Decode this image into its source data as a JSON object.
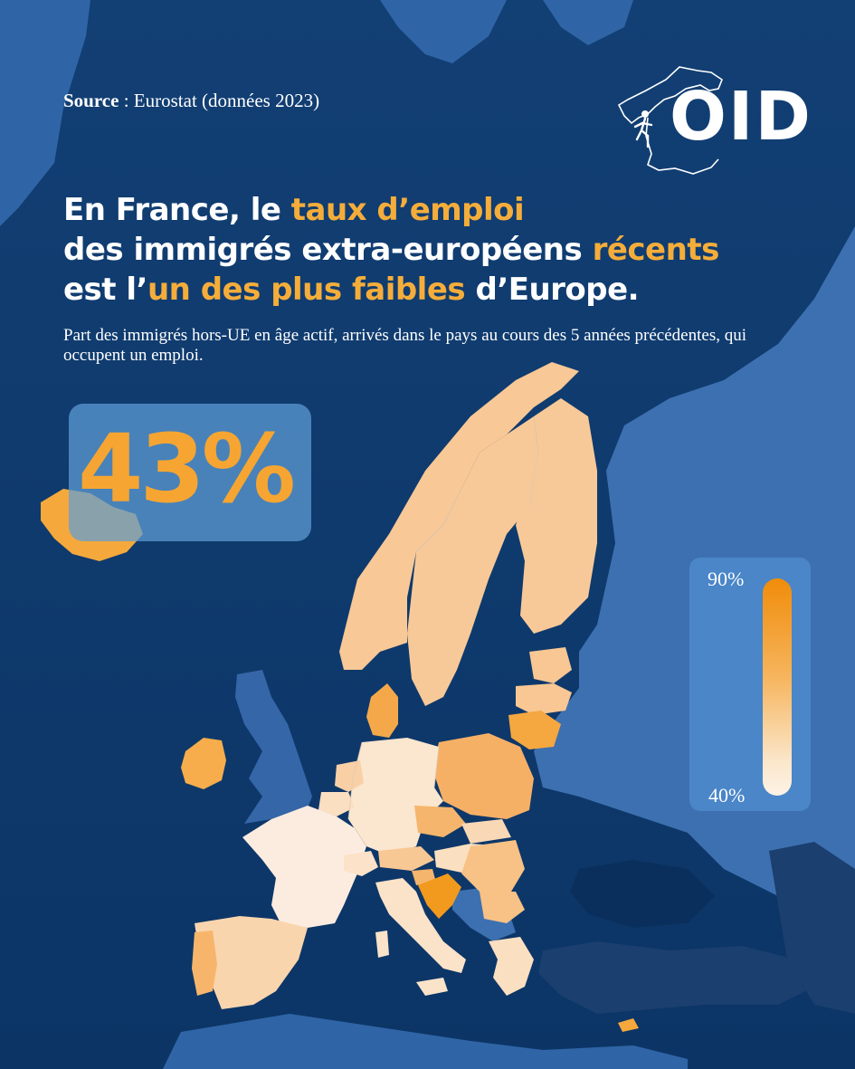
{
  "source": {
    "label": "Source",
    "separator": " : ",
    "text": "Eurostat (données 2023)"
  },
  "logo": {
    "text": "OID"
  },
  "title": {
    "line1_a": "En France, le ",
    "line1_b": "taux d’emploi",
    "line2_a": "des immigrés extra-européens ",
    "line2_b": "récents",
    "line3_a": "est l’",
    "line3_b": "un des plus faibles",
    "line3_c": " d’Europe."
  },
  "subtitle": "Part des immigrés hors-UE en âge actif, arrivés dans le pays au cours des 5 années précédentes, qui occupent un emploi.",
  "highlight": {
    "value": "43%"
  },
  "legend": {
    "max_label": "90%",
    "min_label": "40%",
    "max": 90,
    "min": 40
  },
  "colors": {
    "background": "#0d3a6e",
    "accent": "#f5ad3a",
    "scale_high": "#f08c0a",
    "scale_low": "#fdf3e6",
    "non_eu_land": "#3d70b0",
    "other_land": "#1b3f6e"
  },
  "map_data": {
    "countries": [
      {
        "name": "France",
        "share_pct": 43
      },
      {
        "name": "Croatia",
        "share_pct": 75
      },
      {
        "name": "Iceland",
        "share_pct": 68
      },
      {
        "name": "Ireland",
        "share_pct": 64
      },
      {
        "name": "Lithuania",
        "share_pct": 64
      },
      {
        "name": "Poland",
        "share_pct": 62
      },
      {
        "name": "Cyprus",
        "share_pct": 68
      },
      {
        "name": "Slovenia",
        "share_pct": 64
      },
      {
        "name": "Czechia",
        "share_pct": 58
      },
      {
        "name": "Romania",
        "share_pct": 56
      },
      {
        "name": "Portugal",
        "share_pct": 56
      },
      {
        "name": "Denmark",
        "share_pct": 58
      },
      {
        "name": "Bulgaria",
        "share_pct": 55
      },
      {
        "name": "Netherlands",
        "share_pct": 53
      },
      {
        "name": "Sweden",
        "share_pct": 52
      },
      {
        "name": "Finland",
        "share_pct": 52
      },
      {
        "name": "Norway",
        "share_pct": 53
      },
      {
        "name": "Estonia",
        "share_pct": 53
      },
      {
        "name": "Latvia",
        "share_pct": 53
      },
      {
        "name": "Austria",
        "share_pct": 52
      },
      {
        "name": "Hungary",
        "share_pct": 48
      },
      {
        "name": "Slovakia",
        "share_pct": 49
      },
      {
        "name": "Spain",
        "share_pct": 50
      },
      {
        "name": "Belgium",
        "share_pct": 48
      },
      {
        "name": "Greece",
        "share_pct": 47
      },
      {
        "name": "Italy",
        "share_pct": 45
      },
      {
        "name": "Germany",
        "share_pct": 46
      },
      {
        "name": "Switzerland",
        "share_pct": 46
      }
    ]
  }
}
